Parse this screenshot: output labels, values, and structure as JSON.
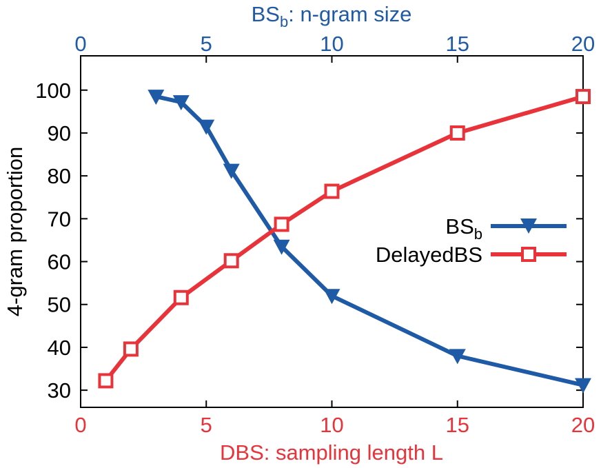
{
  "chart_data": {
    "type": "line",
    "colors": {
      "bs": "#1f5aa6",
      "dbs": "#e8333a",
      "axis": "#000000"
    },
    "title": "",
    "ylabel": "4-gram proportion",
    "ylim": [
      26,
      108
    ],
    "yticks": [
      30,
      40,
      50,
      60,
      70,
      80,
      90,
      100
    ],
    "x_bottom": {
      "label": "DBS: sampling length L",
      "range": [
        0,
        20
      ],
      "ticks": [
        0,
        5,
        10,
        15,
        20
      ]
    },
    "x_top": {
      "label_main": "BS",
      "label_sub": "b",
      "label_rest": ": n-gram size",
      "range": [
        0,
        20
      ],
      "ticks": [
        0,
        5,
        10,
        15,
        20
      ]
    },
    "legend": {
      "placement": "right"
    },
    "series": [
      {
        "name_main": "BS",
        "name_sub": "b",
        "axis": "top",
        "color": "bs",
        "marker": "triangle-down",
        "x": [
          3,
          4,
          5,
          6,
          8,
          10,
          15,
          20
        ],
        "y": [
          98.5,
          97.2,
          91.5,
          81.2,
          63.5,
          52.0,
          38.0,
          31.2
        ]
      },
      {
        "name_main": "DelayedBS",
        "name_sub": "",
        "axis": "bottom",
        "color": "dbs",
        "marker": "square",
        "x": [
          1,
          2,
          4,
          6,
          8,
          10,
          15,
          20
        ],
        "y": [
          32.2,
          39.6,
          51.6,
          60.2,
          68.7,
          76.4,
          90.0,
          98.5
        ]
      }
    ]
  }
}
